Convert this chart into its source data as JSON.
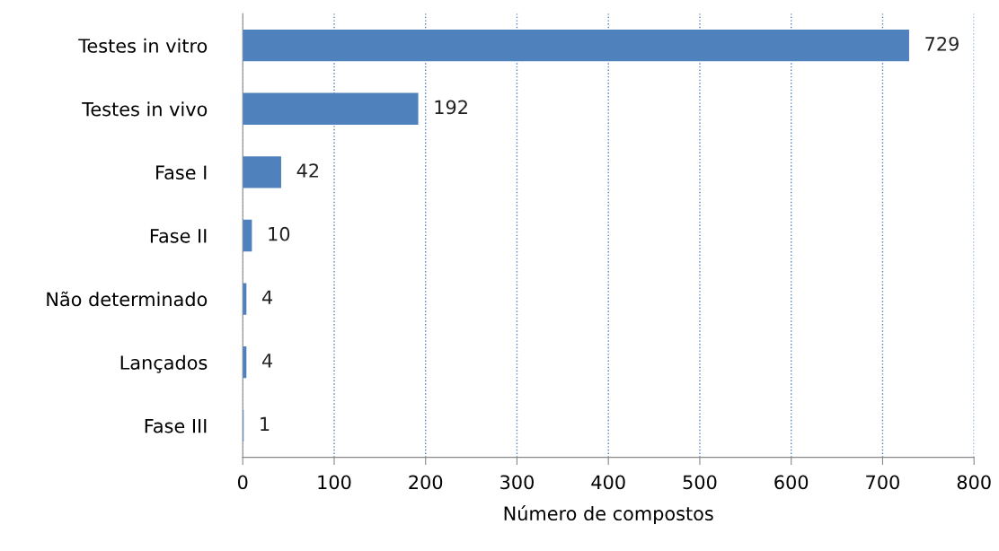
{
  "chart_data": {
    "type": "bar",
    "orientation": "horizontal",
    "xlabel": "Número de compostos",
    "categories": [
      "Testes in vitro",
      "Testes in vivo",
      "Fase I",
      "Fase II",
      "Não determinado",
      "Lançados",
      "Fase III"
    ],
    "values": [
      729,
      192,
      42,
      10,
      4,
      4,
      1
    ],
    "color": "#4f81bd",
    "xlim": [
      0,
      800
    ],
    "xticks": [
      0,
      100,
      200,
      300,
      400,
      500,
      600,
      700,
      800
    ],
    "grid": "x",
    "data_labels": true
  }
}
